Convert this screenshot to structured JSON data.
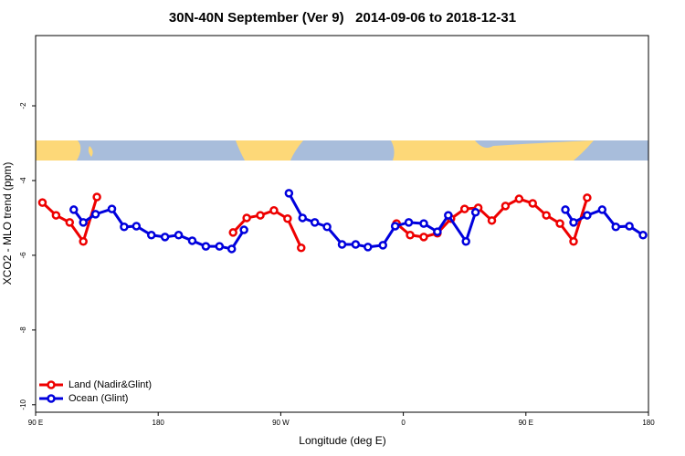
{
  "chart_data": {
    "type": "line",
    "title": "30N-40N September (Ver 9)   2014-09-06 to 2018-12-31",
    "x_label": "Longitude (deg E)",
    "y_label": "XCO2 - MLO trend (ppm)",
    "xlim": [
      90,
      540
    ],
    "xticks": [
      {
        "value": 90,
        "label": "90 E"
      },
      180,
      {
        "value": 270,
        "label": "90 W"
      },
      {
        "value": 360,
        "label": "0"
      },
      {
        "value": 450,
        "label": "90 E"
      },
      {
        "value": 540,
        "label": "180"
      }
    ],
    "ylim": [
      -10.2,
      -0.12
    ],
    "yticks": [
      -2,
      -4,
      -6,
      -8,
      -10
    ],
    "legend": "bottom-left",
    "series": [
      {
        "name": "Land (Nadir&Glint)",
        "color": "#ee0000",
        "x": [
          95,
          105,
          115,
          125,
          135,
          185,
          235,
          245,
          255,
          265,
          275,
          285,
          320,
          355,
          365,
          375,
          385,
          395,
          405,
          415,
          425,
          435,
          445,
          455,
          465,
          475,
          485,
          495
        ],
        "values": [
          -4.59,
          -4.93,
          -5.12,
          -5.63,
          -4.44,
          null,
          -5.39,
          -5.0,
          -4.93,
          -4.8,
          -5.02,
          -5.8,
          null,
          -5.15,
          -5.46,
          -5.51,
          -5.41,
          -5.02,
          -4.76,
          -4.73,
          -5.07,
          -4.68,
          -4.49,
          -4.61,
          -4.93,
          -5.15,
          -5.63,
          -4.46
        ]
      },
      {
        "name": "Ocean (Glint)",
        "color": "#0000dd",
        "x": [
          118,
          125,
          134,
          146,
          155,
          164,
          175,
          185,
          195,
          205,
          215,
          225,
          234,
          243,
          260,
          276,
          286,
          295,
          304,
          315,
          325,
          334,
          345,
          354,
          364,
          375,
          385,
          393,
          406,
          413,
          450,
          479,
          485,
          495,
          506,
          516,
          526,
          536
        ],
        "values": [
          -4.78,
          -5.12,
          -4.9,
          -4.76,
          -5.24,
          -5.22,
          -5.46,
          -5.51,
          -5.46,
          -5.61,
          -5.76,
          -5.76,
          -5.83,
          -5.32,
          null,
          -4.34,
          -5.0,
          -5.12,
          -5.24,
          -5.71,
          -5.71,
          -5.78,
          -5.73,
          -5.22,
          -5.12,
          -5.15,
          -5.37,
          -4.93,
          -5.63,
          -4.85,
          null,
          -4.78,
          -5.12,
          -4.93,
          -4.78,
          -5.24,
          -5.22,
          -5.46
        ]
      }
    ]
  }
}
